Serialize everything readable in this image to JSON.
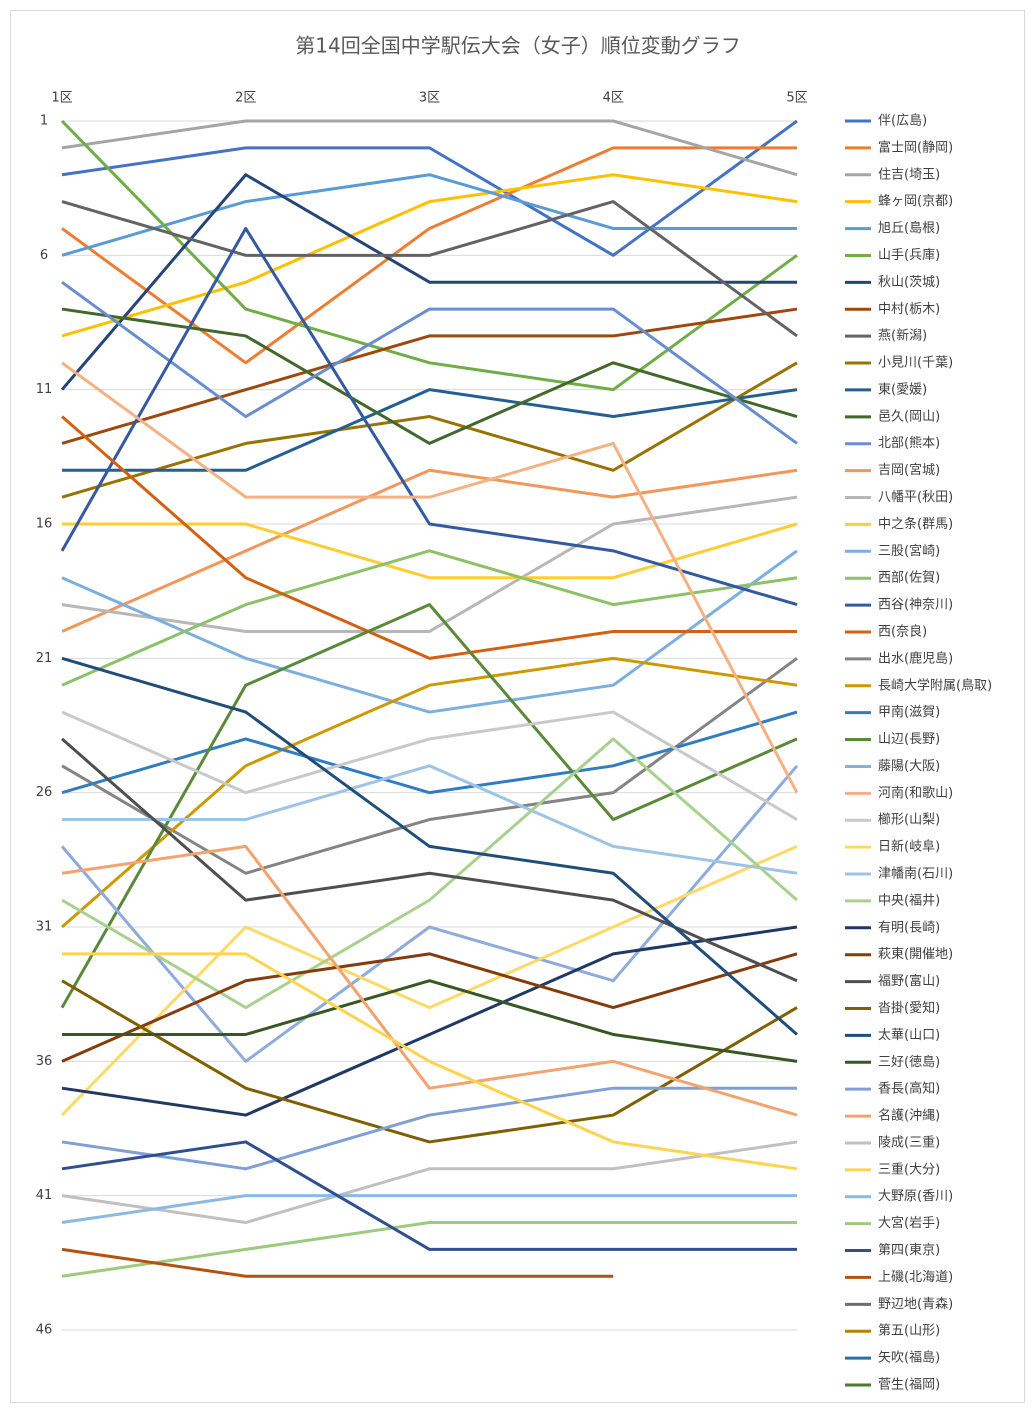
{
  "chart_data": {
    "type": "line",
    "title": "第14回全国中学駅伝大会（女子）順位変動グラフ",
    "categories": [
      "1区",
      "2区",
      "3区",
      "4区",
      "5区"
    ],
    "ylim": [
      1,
      46
    ],
    "yticks": [
      1,
      6,
      11,
      16,
      21,
      26,
      31,
      36,
      41,
      46
    ],
    "yinvert": true,
    "grid": true,
    "legend": "right",
    "series": [
      {
        "name": "伴(広島)",
        "color": "#4472C4",
        "values": [
          3,
          2,
          2,
          6,
          1
        ]
      },
      {
        "name": "富士岡(静岡)",
        "color": "#ED7D31",
        "values": [
          5,
          10,
          5,
          2,
          2
        ]
      },
      {
        "name": "住吉(埼玉)",
        "color": "#A5A5A5",
        "values": [
          2,
          1,
          1,
          1,
          3
        ]
      },
      {
        "name": "蜂ヶ岡(京都)",
        "color": "#FFC000",
        "values": [
          9,
          7,
          4,
          3,
          4
        ]
      },
      {
        "name": "旭丘(島根)",
        "color": "#5B9BD5",
        "values": [
          6,
          4,
          3,
          5,
          5
        ]
      },
      {
        "name": "山手(兵庫)",
        "color": "#70AD47",
        "values": [
          1,
          8,
          10,
          11,
          6
        ]
      },
      {
        "name": "秋山(茨城)",
        "color": "#264478",
        "values": [
          11,
          3,
          7,
          7,
          7
        ]
      },
      {
        "name": "中村(栃木)",
        "color": "#9E480E",
        "values": [
          13,
          11,
          9,
          9,
          8
        ]
      },
      {
        "name": "燕(新潟)",
        "color": "#636363",
        "values": [
          4,
          6,
          6,
          4,
          9
        ]
      },
      {
        "name": "小見川(千葉)",
        "color": "#997300",
        "values": [
          15,
          13,
          12,
          14,
          10
        ]
      },
      {
        "name": "東(愛媛)",
        "color": "#255E91",
        "values": [
          14,
          14,
          11,
          12,
          11
        ]
      },
      {
        "name": "邑久(岡山)",
        "color": "#43682B",
        "values": [
          8,
          9,
          13,
          10,
          12
        ]
      },
      {
        "name": "北部(熊本)",
        "color": "#698ED0",
        "values": [
          7,
          12,
          8,
          8,
          13
        ]
      },
      {
        "name": "吉岡(宮城)",
        "color": "#F1975A",
        "values": [
          20,
          17,
          14,
          15,
          14
        ]
      },
      {
        "name": "八幡平(秋田)",
        "color": "#B7B7B7",
        "values": [
          19,
          20,
          20,
          16,
          15
        ]
      },
      {
        "name": "中之条(群馬)",
        "color": "#FFCD33",
        "values": [
          16,
          16,
          18,
          18,
          16
        ]
      },
      {
        "name": "三股(宮崎)",
        "color": "#7CAFDD",
        "values": [
          18,
          21,
          23,
          22,
          17
        ]
      },
      {
        "name": "西部(佐賀)",
        "color": "#8CC168",
        "values": [
          22,
          19,
          17,
          19,
          18
        ]
      },
      {
        "name": "西谷(神奈川)",
        "color": "#335AA1",
        "values": [
          17,
          5,
          16,
          17,
          19
        ]
      },
      {
        "name": "西(奈良)",
        "color": "#D26012",
        "values": [
          12,
          18,
          21,
          20,
          20
        ]
      },
      {
        "name": "出水(鹿児島)",
        "color": "#848484",
        "values": [
          25,
          29,
          27,
          26,
          21
        ]
      },
      {
        "name": "長崎大学附属(鳥取)",
        "color": "#CC9A00",
        "values": [
          31,
          25,
          22,
          21,
          22
        ]
      },
      {
        "name": "甲南(滋賀)",
        "color": "#327DC2",
        "values": [
          26,
          24,
          26,
          25,
          23
        ]
      },
      {
        "name": "山辺(長野)",
        "color": "#5A8A39",
        "values": [
          34,
          22,
          19,
          27,
          24
        ]
      },
      {
        "name": "藤陽(大阪)",
        "color": "#8FAADC",
        "values": [
          28,
          36,
          31,
          33,
          25
        ]
      },
      {
        "name": "河南(和歌山)",
        "color": "#F4B183",
        "values": [
          10,
          15,
          15,
          13,
          26
        ]
      },
      {
        "name": "櫛形(山梨)",
        "color": "#C9C9C9",
        "values": [
          23,
          26,
          24,
          23,
          27
        ]
      },
      {
        "name": "日新(岐阜)",
        "color": "#FFD966",
        "values": [
          38,
          31,
          34,
          31,
          28
        ]
      },
      {
        "name": "津幡南(石川)",
        "color": "#9DC3E6",
        "values": [
          27,
          27,
          25,
          28,
          29
        ]
      },
      {
        "name": "中央(福井)",
        "color": "#A9D18E",
        "values": [
          30,
          34,
          30,
          24,
          30
        ]
      },
      {
        "name": "有明(長崎)",
        "color": "#203864",
        "values": [
          37,
          38,
          35,
          32,
          31
        ]
      },
      {
        "name": "萩東(開催地)",
        "color": "#843C0C",
        "values": [
          36,
          33,
          32,
          34,
          32
        ]
      },
      {
        "name": "福野(富山)",
        "color": "#4F4F4F",
        "values": [
          24,
          30,
          29,
          30,
          33
        ]
      },
      {
        "name": "沓掛(愛知)",
        "color": "#7F6000",
        "values": [
          33,
          37,
          39,
          38,
          34
        ]
      },
      {
        "name": "太華(山口)",
        "color": "#1F4E79",
        "values": [
          21,
          23,
          28,
          29,
          35
        ]
      },
      {
        "name": "三好(徳島)",
        "color": "#385723",
        "values": [
          35,
          35,
          33,
          35,
          36
        ]
      },
      {
        "name": "香長(高知)",
        "color": "#7F9FD6",
        "values": [
          39,
          40,
          38,
          37,
          37
        ]
      },
      {
        "name": "名護(沖縄)",
        "color": "#F3A36F",
        "values": [
          29,
          28,
          37,
          36,
          38
        ]
      },
      {
        "name": "陵成(三重)",
        "color": "#C0C0C0",
        "values": [
          41,
          42,
          40,
          40,
          39
        ]
      },
      {
        "name": "三重(大分)",
        "color": "#FFD44D",
        "values": [
          32,
          32,
          36,
          39,
          40
        ]
      },
      {
        "name": "大野原(香川)",
        "color": "#8CB9E2",
        "values": [
          42,
          41,
          41,
          41,
          41
        ]
      },
      {
        "name": "大宮(岩手)",
        "color": "#9CCB7D",
        "values": [
          44,
          43,
          42,
          42,
          42
        ]
      },
      {
        "name": "第四(東京)",
        "color": "#2F4F8F",
        "values": [
          40,
          39,
          43,
          43,
          43
        ]
      },
      {
        "name": "上磯(北海道)",
        "color": "#B4520F",
        "values": [
          43,
          44,
          44,
          44,
          null
        ]
      },
      {
        "name": "野辺地(青森)",
        "color": "#6E6E6E",
        "values": [
          null,
          null,
          null,
          null,
          null
        ]
      },
      {
        "name": "第五(山形)",
        "color": "#B08600",
        "values": [
          null,
          null,
          null,
          null,
          null
        ]
      },
      {
        "name": "矢吹(福島)",
        "color": "#2B6EA8",
        "values": [
          null,
          null,
          null,
          null,
          null
        ]
      },
      {
        "name": "菅生(福岡)",
        "color": "#4E7A32",
        "values": [
          null,
          null,
          null,
          null,
          null
        ]
      }
    ]
  }
}
